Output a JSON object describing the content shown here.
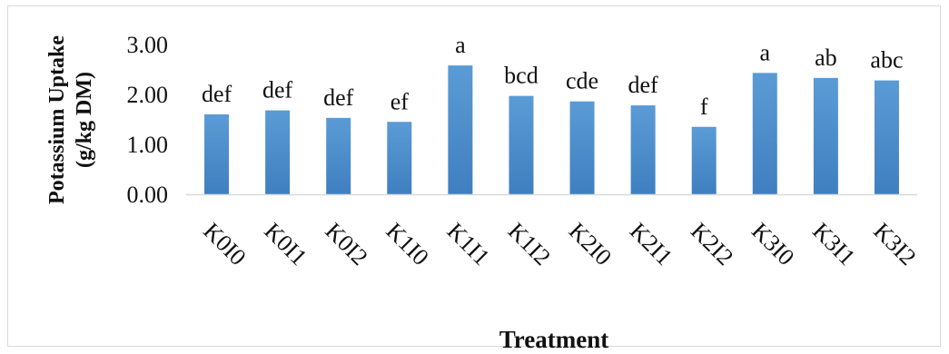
{
  "chart_data": {
    "type": "bar",
    "title": "",
    "xlabel": "Treatment",
    "ylabel_lines": [
      "Potassium Uptake",
      "(g/kg DM)"
    ],
    "categories": [
      "K0I0",
      "K0I1",
      "K0I2",
      "K1I0",
      "K1I1",
      "K1I2",
      "K2I0",
      "K2I1",
      "K2I2",
      "K3I0",
      "K3I1",
      "K3I2"
    ],
    "values": [
      1.6,
      1.68,
      1.53,
      1.45,
      2.58,
      1.97,
      1.86,
      1.78,
      1.35,
      2.43,
      2.33,
      2.28
    ],
    "labels": [
      "def",
      "def",
      "def",
      "ef",
      "a",
      "bcd",
      "cde",
      "def",
      "f",
      "a",
      "ab",
      "abc"
    ],
    "yticks": [
      "0.00",
      "1.00",
      "2.00",
      "3.00"
    ],
    "ylim": [
      0,
      3
    ],
    "grid": false,
    "bar_color": "#5b9bd5",
    "bar_color_dark": "#3f7fc0"
  }
}
